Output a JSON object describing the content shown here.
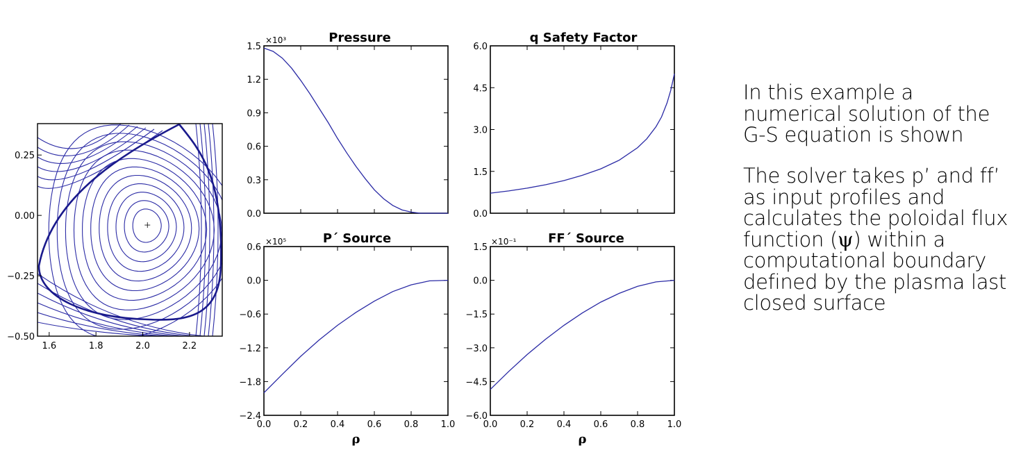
{
  "chart_data": [
    {
      "type": "line",
      "id": "flux",
      "title": "",
      "xlabel": "",
      "ylabel": "",
      "xlim": [
        1.55,
        2.34
      ],
      "ylim": [
        -0.5,
        0.38
      ],
      "xticks": [
        "1.6",
        "1.8",
        "2.0",
        "2.2"
      ],
      "xtick_values": [
        1.6,
        1.8,
        2.0,
        2.2
      ],
      "yticks": [
        "0.25",
        "0.00",
        "−0.25",
        "−0.50"
      ],
      "ytick_values": [
        0.25,
        0.0,
        -0.25,
        -0.5
      ],
      "grid": false,
      "axis_center": [
        2.02,
        -0.04
      ],
      "note": "contour plot of poloidal flux; thick line is plasma boundary"
    },
    {
      "type": "line",
      "id": "pressure",
      "title": "Pressure",
      "multiplier": "×10³",
      "xlabel": "",
      "ylabel": "",
      "xlim": [
        0,
        1
      ],
      "ylim": [
        0,
        1.5
      ],
      "xticks": [],
      "yticks": [
        "0.0",
        "0.3",
        "0.6",
        "0.9",
        "1.2",
        "1.5"
      ],
      "ytick_values": [
        0,
        0.3,
        0.6,
        0.9,
        1.2,
        1.5
      ],
      "x": [
        0,
        0.05,
        0.1,
        0.15,
        0.2,
        0.25,
        0.3,
        0.35,
        0.4,
        0.45,
        0.5,
        0.55,
        0.6,
        0.65,
        0.7,
        0.75,
        0.8,
        0.85,
        0.9,
        0.95,
        1.0
      ],
      "y": [
        1.48,
        1.45,
        1.39,
        1.3,
        1.19,
        1.07,
        0.94,
        0.81,
        0.67,
        0.54,
        0.42,
        0.31,
        0.21,
        0.13,
        0.07,
        0.03,
        0.01,
        0.0,
        0.0,
        0.0,
        0.0
      ]
    },
    {
      "type": "line",
      "id": "q",
      "title": "q Safety Factor",
      "xlabel": "",
      "ylabel": "",
      "xlim": [
        0,
        1
      ],
      "ylim": [
        0,
        6
      ],
      "xticks": [],
      "yticks": [
        "0.0",
        "1.5",
        "3.0",
        "4.5",
        "6.0"
      ],
      "ytick_values": [
        0,
        1.5,
        3,
        4.5,
        6
      ],
      "x": [
        0,
        0.1,
        0.2,
        0.3,
        0.4,
        0.5,
        0.6,
        0.7,
        0.8,
        0.85,
        0.9,
        0.93,
        0.96,
        0.98,
        0.99,
        1.0
      ],
      "y": [
        0.72,
        0.8,
        0.9,
        1.02,
        1.17,
        1.36,
        1.59,
        1.9,
        2.35,
        2.67,
        3.1,
        3.45,
        3.95,
        4.4,
        4.7,
        5.0
      ]
    },
    {
      "type": "line",
      "id": "psource",
      "title": "P´ Source",
      "multiplier": "×10⁵",
      "xlabel": "ρ",
      "ylabel": "",
      "xlim": [
        0,
        1
      ],
      "ylim": [
        -2.4,
        0.6
      ],
      "xticks": [
        "0.0",
        "0.2",
        "0.4",
        "0.6",
        "0.8",
        "1.0"
      ],
      "xtick_values": [
        0,
        0.2,
        0.4,
        0.6,
        0.8,
        1.0
      ],
      "yticks": [
        "0.6",
        "0.0",
        "−0.6",
        "−1.2",
        "−1.8",
        "−2.4"
      ],
      "ytick_values": [
        0.6,
        0,
        -0.6,
        -1.2,
        -1.8,
        -2.4
      ],
      "x": [
        0,
        0.1,
        0.2,
        0.3,
        0.4,
        0.5,
        0.6,
        0.7,
        0.8,
        0.9,
        1.0
      ],
      "y": [
        -2.0,
        -1.67,
        -1.35,
        -1.06,
        -0.8,
        -0.57,
        -0.37,
        -0.2,
        -0.08,
        -0.01,
        0.0
      ]
    },
    {
      "type": "line",
      "id": "ffsource",
      "title": "FF´ Source",
      "multiplier": "×10⁻¹",
      "xlabel": "ρ",
      "ylabel": "",
      "xlim": [
        0,
        1
      ],
      "ylim": [
        -6.0,
        1.5
      ],
      "xticks": [
        "0.0",
        "0.2",
        "0.4",
        "0.6",
        "0.8",
        "1.0"
      ],
      "xtick_values": [
        0,
        0.2,
        0.4,
        0.6,
        0.8,
        1.0
      ],
      "yticks": [
        "1.5",
        "0.0",
        "−1.5",
        "−3.0",
        "−4.5",
        "−6.0"
      ],
      "ytick_values": [
        1.5,
        0,
        -1.5,
        -3.0,
        -4.5,
        -6.0
      ],
      "x": [
        0,
        0.1,
        0.2,
        0.3,
        0.4,
        0.5,
        0.6,
        0.7,
        0.8,
        0.9,
        1.0
      ],
      "y": [
        -4.85,
        -4.05,
        -3.3,
        -2.62,
        -2.0,
        -1.45,
        -0.97,
        -0.58,
        -0.27,
        -0.07,
        0.0
      ]
    }
  ],
  "text": {
    "para1": "In this example a numerical solution of the G-S equation is shown",
    "para2_a": "The solver takes p’ and ff’ as input profiles and calculates the poloidal flux function (",
    "para2_psi": "ψ",
    "para2_b": ") within a computational boundary defined by the plasma last closed surface"
  },
  "colors": {
    "line": "#2a2aa5",
    "axis": "#000000",
    "boundary": "#1a1a8c"
  }
}
